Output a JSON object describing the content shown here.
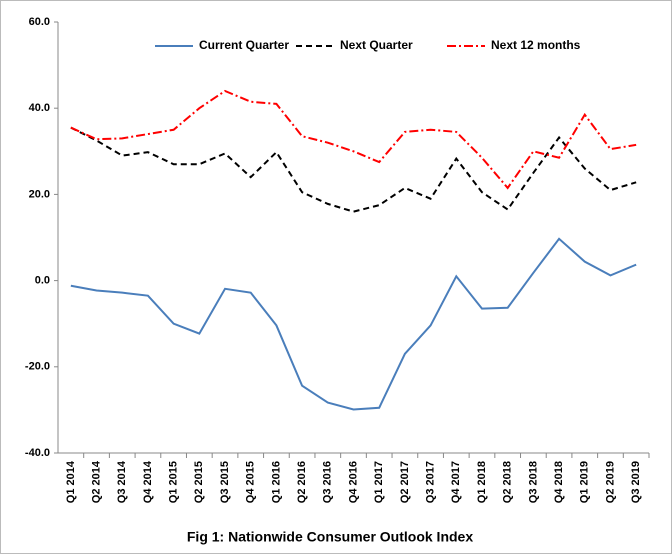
{
  "chart_data": {
    "type": "line",
    "title": "Fig 1: Nationwide Consumer Outlook Index",
    "categories": [
      "Q1 2014",
      "Q2 2014",
      "Q3 2014",
      "Q4 2014",
      "Q1 2015",
      "Q2 2015",
      "Q3 2015",
      "Q4 2015",
      "Q1 2016",
      "Q2 2016",
      "Q3 2016",
      "Q4 2016",
      "Q1 2017",
      "Q2 2017",
      "Q3 2017",
      "Q4 2017",
      "Q1 2018",
      "Q2 2018",
      "Q3 2018",
      "Q4 2018",
      "Q1 2019",
      "Q2 2019",
      "Q3 2019"
    ],
    "series": [
      {
        "name": "Current Quarter",
        "color": "#4a7ebb",
        "values": [
          -1.2,
          -2.3,
          -2.8,
          -3.5,
          -10,
          -12.3,
          -1.9,
          -2.8,
          -10.4,
          -24.4,
          -28.3,
          -29.9,
          -29.5,
          -17,
          -10.4,
          1,
          -6.5,
          -6.3,
          1.8,
          9.7,
          4.4,
          1.2,
          3.7
        ]
      },
      {
        "name": "Next Quarter",
        "color": "#000000",
        "values": [
          35.5,
          32.5,
          29,
          29.8,
          27,
          27,
          29.5,
          24,
          29.8,
          20.5,
          17.8,
          16,
          17.5,
          21.5,
          19,
          28.3,
          20.5,
          16.5,
          25,
          33.2,
          26,
          21,
          22.8
        ]
      },
      {
        "name": "Next 12 months",
        "color": "#ff0000",
        "values": [
          35.5,
          32.8,
          33,
          34,
          35,
          40,
          44,
          41.5,
          41,
          33.5,
          32,
          30,
          27.5,
          34.5,
          35,
          34.5,
          28.5,
          21.5,
          30,
          28.5,
          38.5,
          30.5,
          31.5
        ]
      }
    ],
    "ylim": [
      -40,
      60
    ],
    "yticks": [
      {
        "value": -40,
        "label": "-40.0"
      },
      {
        "value": -20,
        "label": "-20.0"
      },
      {
        "value": 0,
        "label": "0.0"
      },
      {
        "value": 20,
        "label": "20.0"
      },
      {
        "value": 40,
        "label": "40.0"
      },
      {
        "value": 60,
        "label": "60.0"
      }
    ],
    "grid": false,
    "legend": "top"
  }
}
